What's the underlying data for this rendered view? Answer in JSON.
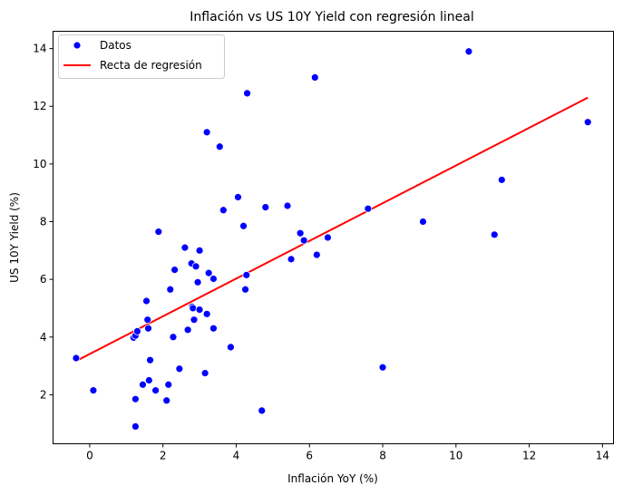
{
  "chart_data": {
    "type": "scatter",
    "title": "Inflación vs US 10Y Yield con regresión lineal",
    "xlabel": "Inflación YoY (%)",
    "ylabel": "US 10Y Yield (%)",
    "xlim": [
      -1.0,
      14.3
    ],
    "ylim": [
      0.3,
      14.6
    ],
    "xticks": [
      0,
      2,
      4,
      6,
      8,
      10,
      12,
      14
    ],
    "yticks": [
      2,
      4,
      6,
      8,
      10,
      12,
      14
    ],
    "grid": false,
    "legend_position": "top-left",
    "colors": {
      "points": "#0000ff",
      "line": "#ff0000"
    },
    "series": [
      {
        "name": "Datos",
        "kind": "scatter",
        "points": [
          [
            -0.37,
            3.27
          ],
          [
            0.1,
            2.15
          ],
          [
            1.2,
            3.98
          ],
          [
            1.25,
            4.05
          ],
          [
            1.3,
            4.2
          ],
          [
            1.25,
            1.85
          ],
          [
            1.25,
            0.9
          ],
          [
            1.45,
            2.35
          ],
          [
            1.55,
            5.25
          ],
          [
            1.58,
            4.6
          ],
          [
            1.6,
            4.3
          ],
          [
            1.62,
            2.5
          ],
          [
            1.65,
            3.2
          ],
          [
            1.8,
            2.15
          ],
          [
            1.88,
            7.65
          ],
          [
            2.1,
            1.8
          ],
          [
            2.15,
            2.35
          ],
          [
            2.2,
            5.65
          ],
          [
            2.28,
            4.0
          ],
          [
            2.32,
            6.33
          ],
          [
            2.45,
            2.9
          ],
          [
            2.6,
            7.1
          ],
          [
            2.68,
            4.25
          ],
          [
            2.78,
            6.55
          ],
          [
            2.8,
            5.05
          ],
          [
            2.82,
            5.0
          ],
          [
            2.85,
            4.6
          ],
          [
            2.9,
            6.45
          ],
          [
            2.95,
            5.9
          ],
          [
            3.0,
            7.0
          ],
          [
            3.0,
            4.95
          ],
          [
            3.15,
            2.75
          ],
          [
            3.2,
            4.8
          ],
          [
            3.2,
            11.1
          ],
          [
            3.25,
            6.22
          ],
          [
            3.38,
            6.02
          ],
          [
            3.38,
            4.3
          ],
          [
            3.55,
            10.6
          ],
          [
            3.65,
            8.4
          ],
          [
            3.85,
            3.65
          ],
          [
            4.05,
            8.85
          ],
          [
            4.2,
            7.85
          ],
          [
            4.25,
            5.65
          ],
          [
            4.28,
            6.15
          ],
          [
            4.3,
            12.45
          ],
          [
            4.7,
            1.45
          ],
          [
            4.8,
            8.5
          ],
          [
            5.4,
            8.55
          ],
          [
            5.5,
            6.7
          ],
          [
            5.75,
            7.6
          ],
          [
            5.85,
            7.35
          ],
          [
            6.15,
            13.0
          ],
          [
            6.2,
            6.85
          ],
          [
            6.5,
            7.45
          ],
          [
            7.6,
            8.45
          ],
          [
            8.0,
            2.95
          ],
          [
            9.1,
            8.0
          ],
          [
            10.35,
            13.9
          ],
          [
            11.05,
            7.55
          ],
          [
            11.25,
            9.45
          ],
          [
            13.6,
            11.45
          ]
        ]
      },
      {
        "name": "Recta de regresión",
        "kind": "line",
        "points": [
          [
            -0.37,
            3.17
          ],
          [
            13.6,
            12.3
          ]
        ]
      }
    ]
  }
}
